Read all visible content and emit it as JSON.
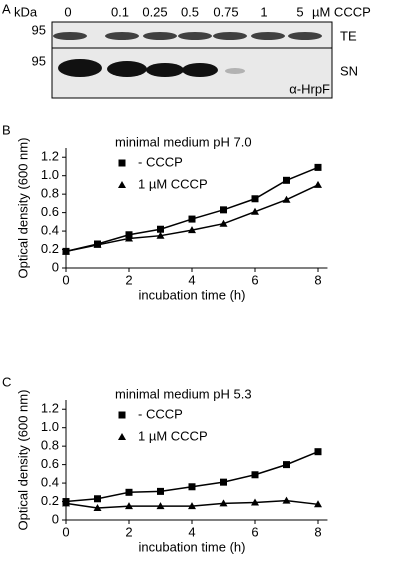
{
  "blot": {
    "panel": "A",
    "unit_label": "kDa",
    "lanes": [
      "0",
      "0.1",
      "0.25",
      "0.5",
      "0.75",
      "1",
      "5"
    ],
    "lane_unit": "µM CCCP",
    "rows": [
      {
        "marker": "95",
        "label": "TE"
      },
      {
        "marker": "95",
        "label": "SN"
      }
    ],
    "antibody": "α-HrpF"
  },
  "chart_data": [
    {
      "type": "line",
      "panel": "B",
      "title": "minimal medium pH 7.0",
      "x_label": "incubation time (h)",
      "y_label": "Optical density (600 nm)",
      "x": [
        0,
        1,
        2,
        3,
        4,
        5,
        6,
        7,
        8
      ],
      "series": [
        {
          "name": "- CCCP",
          "color": "#000000",
          "marker": "square",
          "values": [
            0.18,
            0.26,
            0.36,
            0.42,
            0.53,
            0.63,
            0.75,
            0.95,
            1.09
          ]
        },
        {
          "name": "1 µM CCCP",
          "color": "#000000",
          "marker": "triangle",
          "values": [
            0.18,
            0.25,
            0.32,
            0.35,
            0.41,
            0.48,
            0.61,
            0.74,
            0.9
          ]
        }
      ],
      "xlim": [
        0,
        8.3
      ],
      "ylim": [
        0,
        1.3
      ],
      "xticks": [
        0,
        2,
        4,
        6,
        8
      ],
      "yticks": [
        0,
        0.2,
        0.4,
        0.6,
        0.8,
        {
          "value": 1,
          "label": "1.0"
        },
        1.2
      ]
    },
    {
      "type": "line",
      "panel": "C",
      "title": "minimal medium pH 5.3",
      "x_label": "incubation time (h)",
      "y_label": "Optical density (600 nm)",
      "x": [
        0,
        1,
        2,
        3,
        4,
        5,
        6,
        7,
        8
      ],
      "series": [
        {
          "name": "- CCCP",
          "color": "#000000",
          "marker": "square",
          "values": [
            0.2,
            0.23,
            0.3,
            0.31,
            0.36,
            0.41,
            0.49,
            0.6,
            0.74
          ]
        },
        {
          "name": "1 µM CCCP",
          "color": "#000000",
          "marker": "triangle",
          "values": [
            0.18,
            0.13,
            0.15,
            0.15,
            0.15,
            0.18,
            0.19,
            0.21,
            0.17
          ]
        }
      ],
      "xlim": [
        0,
        8.3
      ],
      "ylim": [
        0,
        1.3
      ],
      "xticks": [
        0,
        2,
        4,
        6,
        8
      ],
      "yticks": [
        0,
        0.2,
        0.4,
        0.6,
        0.8,
        {
          "value": 1,
          "label": "1.0"
        },
        1.2
      ]
    }
  ]
}
